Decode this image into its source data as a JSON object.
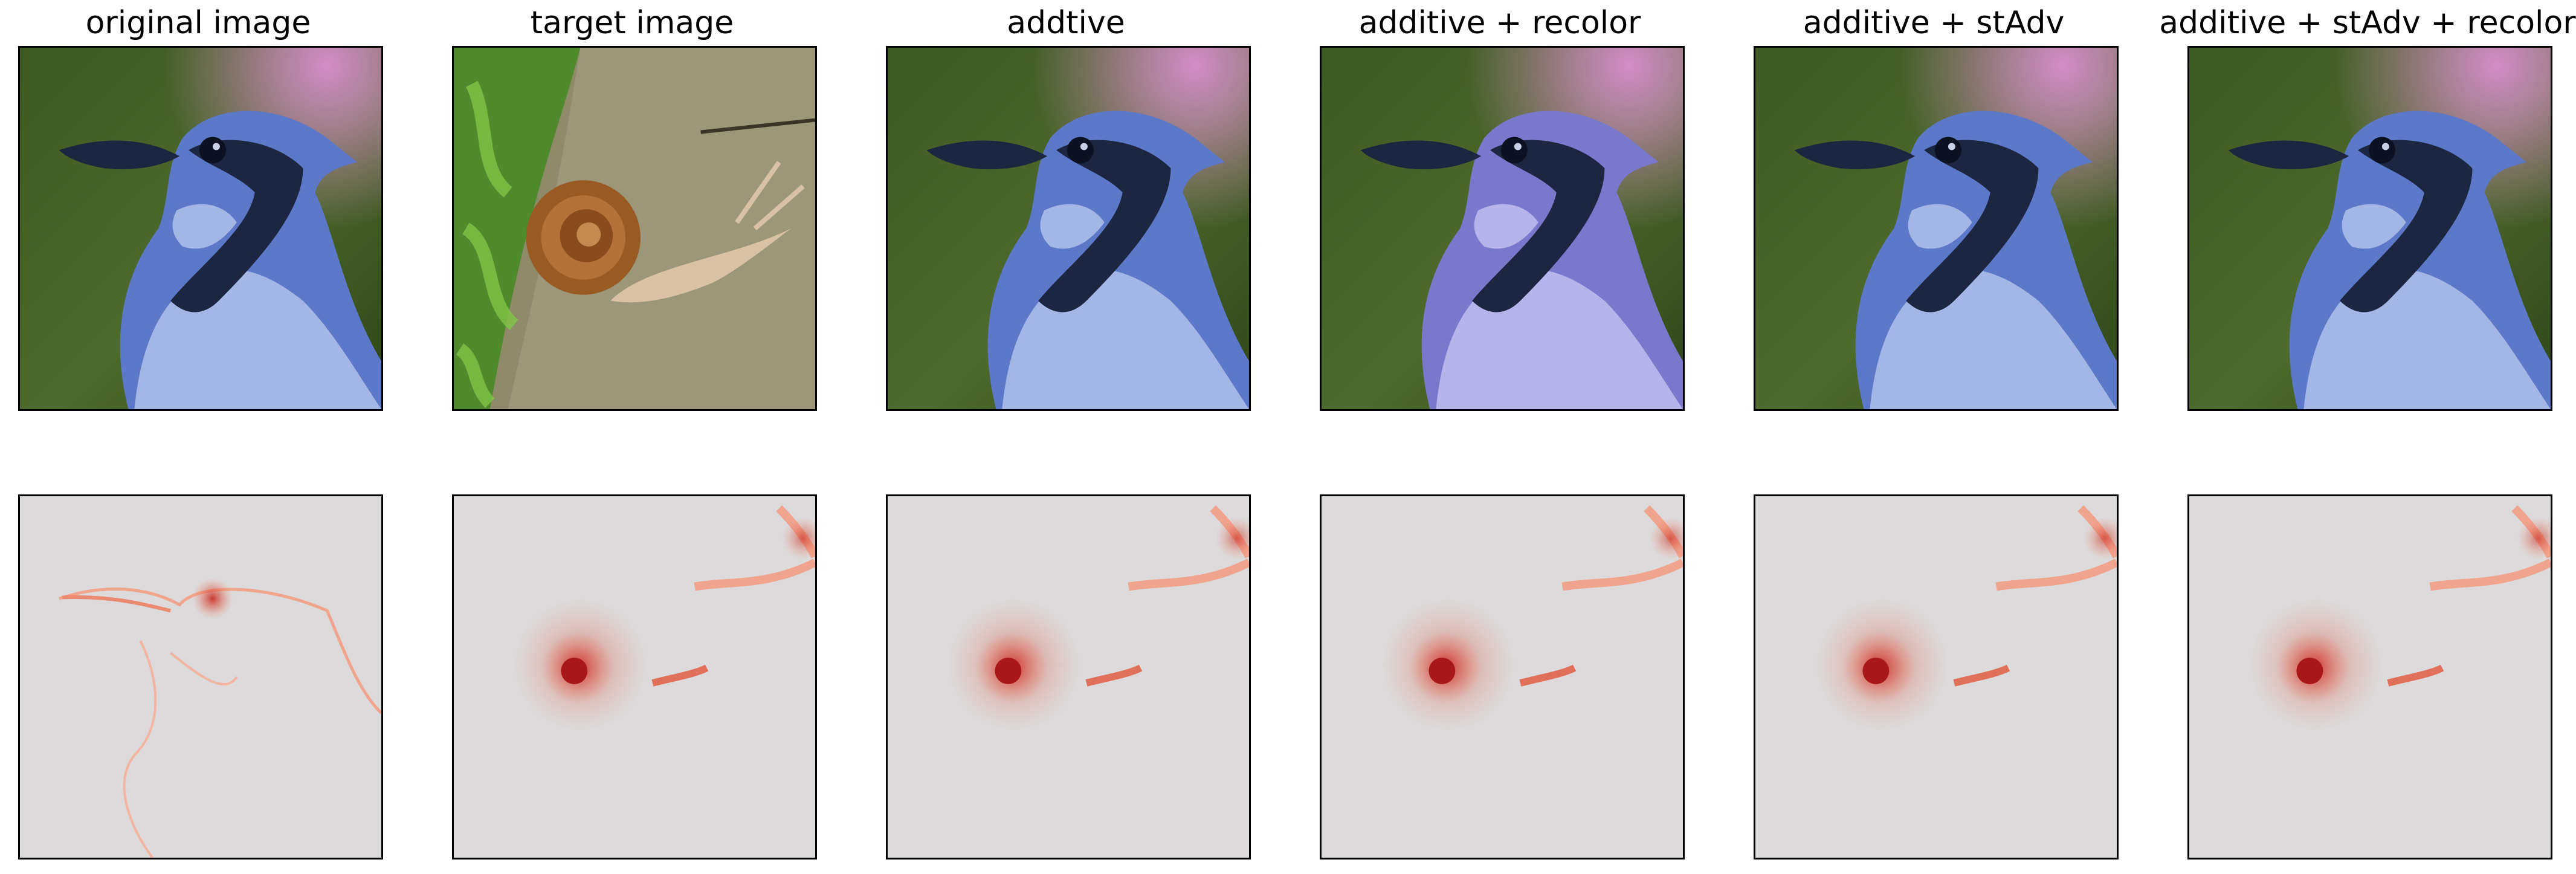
{
  "figure": {
    "columns": [
      {
        "title": "original image",
        "photo": "blue-jay-photo",
        "map": "blue-jay-outline-heatmap"
      },
      {
        "title": "target image",
        "photo": "snail-photo",
        "map": "snail-heatmap"
      },
      {
        "title": "addtive",
        "photo": "blue-jay-photo",
        "map": "snail-heatmap"
      },
      {
        "title": "additive + recolor",
        "photo": "blue-jay-photo-recolored",
        "map": "snail-heatmap"
      },
      {
        "title": "additive + stAdv",
        "photo": "blue-jay-photo",
        "map": "snail-heatmap"
      },
      {
        "title": "additive + stAdv + recolor",
        "photo": "blue-jay-photo",
        "map": "snail-heatmap"
      }
    ],
    "colors": {
      "heatmap_background": "#dcdada",
      "heatmap_hot": "#c8281e",
      "jay_blue": "#5c78c8",
      "jay_dark": "#1c2640",
      "background_green": "#4e6a2c",
      "background_pink": "#d48cc6"
    }
  }
}
